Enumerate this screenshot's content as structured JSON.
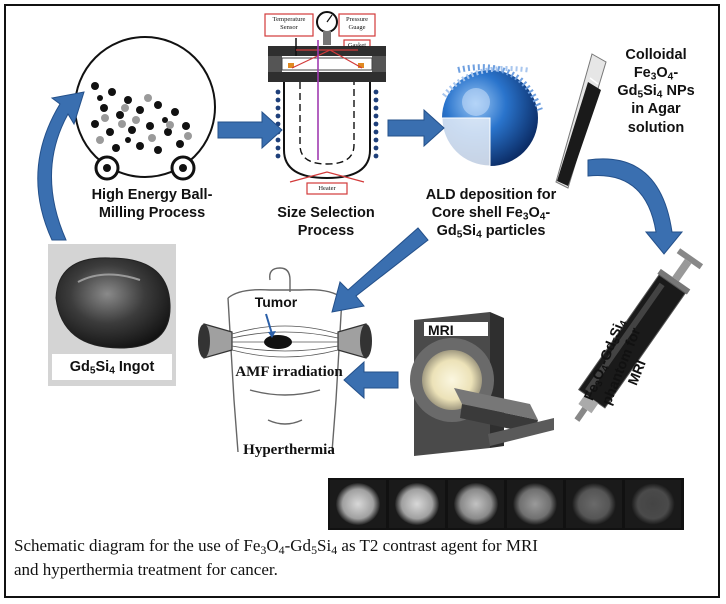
{
  "labels": {
    "ball_milling": [
      "High Energy Ball-",
      "Milling Process"
    ],
    "size_selection": [
      "Size Selection",
      "Process"
    ],
    "ald": [
      "ALD deposition for",
      "Core shell Fe",
      "3",
      "O",
      "4",
      "-",
      "Gd",
      "5",
      "Si",
      "4",
      " particles"
    ],
    "colloidal": [
      "Colloidal",
      "Fe",
      "3",
      "O",
      "4",
      "-",
      "Gd",
      "5",
      "Si",
      "4",
      " NPs",
      "in Agar",
      "solution"
    ],
    "ingot": [
      "Gd",
      "5",
      "Si",
      "4",
      " Ingot"
    ],
    "tumor": "Tumor",
    "amf": "AMF irradiation",
    "hyperthermia": "Hyperthermia",
    "mri": "MRI",
    "phantom": [
      "Fe",
      "3",
      "O",
      "4",
      "-Gd",
      "5",
      "Si",
      "4",
      "phantom for",
      "MRI"
    ],
    "apparatus": {
      "temperature_sensor": [
        "Temperature",
        "Sensor"
      ],
      "pressure_gauge": [
        "Pressure",
        "Guage"
      ],
      "gasket": "Gasket",
      "heater": "Heater"
    }
  },
  "caption": {
    "line1_a": "Schematic diagram for the use of Fe",
    "line1_b": "3",
    "line1_c": "O",
    "line1_d": "4",
    "line1_e": "-Gd",
    "line1_f": "5",
    "line1_g": "Si",
    "line1_h": "4",
    "line1_i": " as T2 contrast agent for MRI",
    "line2": "and hyperthermia treatment for cancer."
  },
  "colors": {
    "arrow_blue": "#3a6fb0",
    "apparatus_red": "#d23a3a",
    "sphere_blue": "#1c5fb5"
  }
}
